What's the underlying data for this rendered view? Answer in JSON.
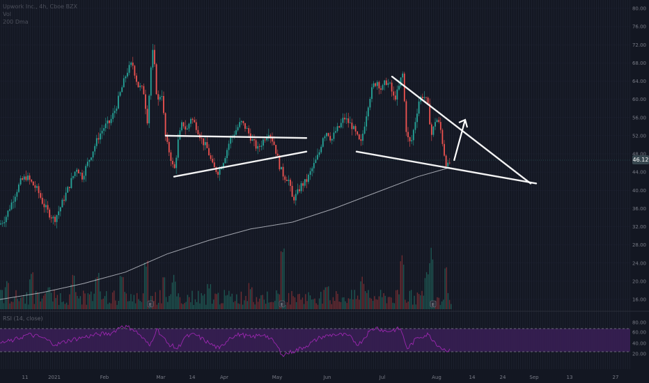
{
  "legend": {
    "symbol": "Upwork Inc., 4h, Cboe BZX",
    "vol": "Vol",
    "ma": "200 Dma"
  },
  "rsi_label": "RSI (14, close)",
  "current_price": "46.12",
  "colors": {
    "background": "#131722",
    "up": "#26a69a",
    "down": "#ef5350",
    "ma": "#d1d4dc",
    "rsi_line": "#9c27b0",
    "rsi_band": "#3a1f56",
    "trendline": "#ffffff"
  },
  "chart_data": [
    {
      "type": "candlestick",
      "title": "",
      "x_ticks": [
        "11",
        "2021",
        "Feb",
        "Mar",
        "14",
        "Apr",
        "May",
        "Jun",
        "Jul",
        "Aug",
        "14",
        "24",
        "Sep",
        "13",
        "27"
      ],
      "y_ticks": [
        "80.00",
        "76.00",
        "72.00",
        "68.00",
        "64.00",
        "60.00",
        "56.00",
        "52.00",
        "48.00",
        "44.00",
        "40.00",
        "36.00",
        "32.00",
        "28.00",
        "24.00",
        "20.00",
        "16.00"
      ],
      "ylim": [
        14,
        82
      ],
      "price_path": [
        [
          0,
          32.5
        ],
        [
          8,
          34
        ],
        [
          16,
          37
        ],
        [
          24,
          40
        ],
        [
          30,
          42
        ],
        [
          38,
          43
        ],
        [
          46,
          41.5
        ],
        [
          54,
          40
        ],
        [
          62,
          37
        ],
        [
          70,
          35
        ],
        [
          78,
          33.5
        ],
        [
          86,
          36
        ],
        [
          94,
          39
        ],
        [
          102,
          42
        ],
        [
          110,
          45
        ],
        [
          118,
          43
        ],
        [
          126,
          46
        ],
        [
          134,
          49
        ],
        [
          142,
          52
        ],
        [
          150,
          54
        ],
        [
          158,
          55
        ],
        [
          166,
          58
        ],
        [
          174,
          62
        ],
        [
          182,
          66
        ],
        [
          190,
          68
        ],
        [
          198,
          63
        ],
        [
          206,
          62
        ],
        [
          212,
          55
        ],
        [
          216,
          66
        ],
        [
          220,
          71
        ],
        [
          226,
          59
        ],
        [
          232,
          62
        ],
        [
          238,
          51
        ],
        [
          244,
          48
        ],
        [
          250,
          44
        ],
        [
          256,
          51
        ],
        [
          262,
          55
        ],
        [
          268,
          53
        ],
        [
          274,
          56
        ],
        [
          282,
          54
        ],
        [
          290,
          51
        ],
        [
          298,
          49
        ],
        [
          306,
          45
        ],
        [
          314,
          44
        ],
        [
          322,
          47
        ],
        [
          330,
          51
        ],
        [
          338,
          53
        ],
        [
          346,
          55
        ],
        [
          354,
          53.5
        ],
        [
          362,
          51
        ],
        [
          370,
          49
        ],
        [
          378,
          51
        ],
        [
          386,
          53
        ],
        [
          394,
          50
        ],
        [
          402,
          45
        ],
        [
          408,
          43
        ],
        [
          414,
          42.5
        ],
        [
          420,
          38
        ],
        [
          426,
          39
        ],
        [
          432,
          41
        ],
        [
          440,
          42
        ],
        [
          446,
          44
        ],
        [
          452,
          46
        ],
        [
          458,
          48
        ],
        [
          464,
          52
        ],
        [
          470,
          53
        ],
        [
          476,
          51
        ],
        [
          482,
          53
        ],
        [
          488,
          54
        ],
        [
          494,
          56
        ],
        [
          500,
          55
        ],
        [
          506,
          54
        ],
        [
          512,
          52
        ],
        [
          518,
          50
        ],
        [
          524,
          55
        ],
        [
          530,
          60
        ],
        [
          536,
          63
        ],
        [
          542,
          64
        ],
        [
          548,
          62
        ],
        [
          554,
          64
        ],
        [
          560,
          63
        ],
        [
          566,
          60
        ],
        [
          572,
          62
        ],
        [
          578,
          66
        ],
        [
          584,
          52
        ],
        [
          590,
          50
        ],
        [
          596,
          55
        ],
        [
          602,
          60
        ],
        [
          608,
          61
        ],
        [
          614,
          59
        ],
        [
          620,
          52
        ],
        [
          626,
          56
        ],
        [
          632,
          54
        ],
        [
          638,
          48
        ],
        [
          642,
          45
        ],
        [
          646,
          46.12
        ]
      ],
      "ma_path": [
        [
          0,
          16
        ],
        [
          60,
          17.5
        ],
        [
          120,
          19.5
        ],
        [
          180,
          22
        ],
        [
          240,
          26
        ],
        [
          300,
          29
        ],
        [
          360,
          31.5
        ],
        [
          420,
          33
        ],
        [
          480,
          36
        ],
        [
          540,
          39.5
        ],
        [
          600,
          43
        ],
        [
          646,
          45
        ]
      ],
      "volume": {
        "max_label": "",
        "spikes": [
          [
            10,
            0.4
          ],
          [
            45,
            0.5
          ],
          [
            70,
            0.3
          ],
          [
            105,
            0.45
          ],
          [
            140,
            0.55
          ],
          [
            175,
            0.5
          ],
          [
            210,
            0.75
          ],
          [
            235,
            0.55
          ],
          [
            250,
            0.45
          ],
          [
            300,
            0.35
          ],
          [
            360,
            0.35
          ],
          [
            405,
            0.8
          ],
          [
            470,
            0.35
          ],
          [
            520,
            0.45
          ],
          [
            578,
            0.8
          ],
          [
            612,
            0.55
          ],
          [
            620,
            0.85
          ],
          [
            640,
            0.75
          ]
        ]
      },
      "earnings_markers_x": [
        216,
        405,
        622
      ],
      "rsi": {
        "upper": 70,
        "lower": 30,
        "path": [
          [
            0,
            45
          ],
          [
            20,
            50
          ],
          [
            40,
            60
          ],
          [
            60,
            55
          ],
          [
            80,
            42
          ],
          [
            100,
            50
          ],
          [
            120,
            55
          ],
          [
            140,
            60
          ],
          [
            160,
            62
          ],
          [
            175,
            75
          ],
          [
            190,
            70
          ],
          [
            200,
            60
          ],
          [
            215,
            40
          ],
          [
            225,
            70
          ],
          [
            240,
            45
          ],
          [
            255,
            35
          ],
          [
            265,
            55
          ],
          [
            280,
            60
          ],
          [
            300,
            45
          ],
          [
            315,
            35
          ],
          [
            330,
            55
          ],
          [
            345,
            60
          ],
          [
            360,
            55
          ],
          [
            380,
            60
          ],
          [
            395,
            45
          ],
          [
            405,
            25
          ],
          [
            420,
            30
          ],
          [
            440,
            40
          ],
          [
            460,
            55
          ],
          [
            480,
            60
          ],
          [
            500,
            58
          ],
          [
            515,
            42
          ],
          [
            530,
            65
          ],
          [
            540,
            72
          ],
          [
            555,
            65
          ],
          [
            575,
            70
          ],
          [
            585,
            35
          ],
          [
            600,
            55
          ],
          [
            615,
            60
          ],
          [
            630,
            40
          ],
          [
            640,
            32
          ],
          [
            646,
            35
          ]
        ]
      },
      "trendlines": [
        {
          "from": [
            238,
            52
          ],
          "to": [
            440,
            51.5
          ]
        },
        {
          "from": [
            250,
            43
          ],
          "to": [
            440,
            48.5
          ]
        },
        {
          "from": [
            512,
            48.5
          ],
          "to": [
            770,
            41.5
          ]
        },
        {
          "from": [
            563,
            65
          ],
          "to": [
            762,
            41.5
          ]
        }
      ],
      "arrow": {
        "from": [
          652,
          46.5
        ],
        "to": [
          668,
          55.5
        ]
      }
    }
  ]
}
